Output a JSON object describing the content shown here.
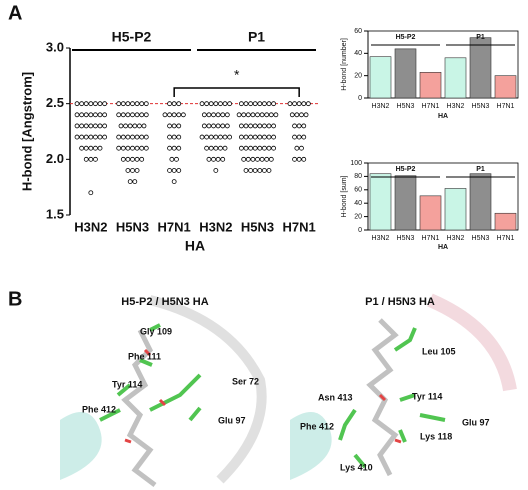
{
  "panels": [
    "A",
    "B"
  ],
  "chart_data": [
    {
      "type": "strip",
      "ylabel": "H-bond [Angstrom]",
      "xlabel": "HA",
      "categories": [
        "H3N2",
        "H5N3",
        "H7N1",
        "H3N2",
        "H5N3",
        "H7N1"
      ],
      "groups": [
        "H5-P2",
        "P1"
      ],
      "annotation": "*",
      "reference_line": {
        "value": 2.5,
        "color": "#e03030"
      },
      "ylim": [
        1.5,
        3.0
      ],
      "yticks": [
        {
          "value": 1.5,
          "label": "1.5"
        },
        {
          "value": 2,
          "label": "2.0"
        },
        {
          "value": 2.5,
          "label": "2.5"
        },
        {
          "value": 3,
          "label": "3.0"
        }
      ],
      "values": [
        [
          2.5,
          2.5,
          2.5,
          2.5,
          2.5,
          2.5,
          2.5,
          2.4,
          2.4,
          2.4,
          2.4,
          2.4,
          2.4,
          2.4,
          2.3,
          2.3,
          2.3,
          2.3,
          2.3,
          2.3,
          2.3,
          2.2,
          2.2,
          2.2,
          2.2,
          2.2,
          2.2,
          2.2,
          2.1,
          2.1,
          2.1,
          2.1,
          2.1,
          2.0,
          2.0,
          2.0,
          1.7
        ],
        [
          2.5,
          2.5,
          2.5,
          2.5,
          2.5,
          2.5,
          2.5,
          2.4,
          2.4,
          2.4,
          2.4,
          2.4,
          2.4,
          2.4,
          2.3,
          2.3,
          2.3,
          2.3,
          2.3,
          2.3,
          2.2,
          2.2,
          2.2,
          2.2,
          2.2,
          2.2,
          2.2,
          2.1,
          2.1,
          2.1,
          2.1,
          2.1,
          2.1,
          2.1,
          2.0,
          2.0,
          2.0,
          2.0,
          2.0,
          1.9,
          1.9,
          1.9,
          1.8,
          1.8
        ],
        [
          2.5,
          2.5,
          2.5,
          2.4,
          2.4,
          2.4,
          2.4,
          2.4,
          2.3,
          2.3,
          2.3,
          2.2,
          2.2,
          2.2,
          2.1,
          2.1,
          2.1,
          2.0,
          2.0,
          1.9,
          1.9,
          1.9,
          1.8
        ],
        [
          2.5,
          2.5,
          2.5,
          2.5,
          2.5,
          2.5,
          2.5,
          2.4,
          2.4,
          2.4,
          2.4,
          2.4,
          2.4,
          2.3,
          2.3,
          2.3,
          2.3,
          2.3,
          2.3,
          2.2,
          2.2,
          2.2,
          2.2,
          2.2,
          2.2,
          2.2,
          2.1,
          2.1,
          2.1,
          2.1,
          2.1,
          2.0,
          2.0,
          2.0,
          2.0,
          1.9
        ],
        [
          2.5,
          2.5,
          2.5,
          2.5,
          2.5,
          2.5,
          2.5,
          2.5,
          2.4,
          2.4,
          2.4,
          2.4,
          2.4,
          2.4,
          2.4,
          2.4,
          2.4,
          2.3,
          2.3,
          2.3,
          2.3,
          2.3,
          2.3,
          2.3,
          2.3,
          2.2,
          2.2,
          2.2,
          2.2,
          2.2,
          2.2,
          2.2,
          2.2,
          2.1,
          2.1,
          2.1,
          2.1,
          2.1,
          2.1,
          2.1,
          2.1,
          2.0,
          2.0,
          2.0,
          2.0,
          2.0,
          2.0,
          2.0,
          1.9,
          1.9,
          1.9,
          1.9,
          1.9,
          1.9
        ],
        [
          2.5,
          2.5,
          2.5,
          2.5,
          2.5,
          2.4,
          2.4,
          2.4,
          2.4,
          2.3,
          2.3,
          2.3,
          2.2,
          2.2,
          2.2,
          2.1,
          2.1,
          2.0,
          2.0,
          2.0
        ]
      ]
    },
    {
      "type": "bar",
      "ylabel": "H-bond [number]",
      "xlabel": "HA",
      "categories": [
        "H3N2",
        "H5N3",
        "H7N1",
        "H3N2",
        "H5N3",
        "H7N1"
      ],
      "groups": [
        "H5-P2",
        "P1"
      ],
      "values": [
        37,
        44,
        23,
        36,
        54,
        20
      ],
      "colors": [
        "#c9f5e6",
        "#8e8e8e",
        "#f4a19c",
        "#c9f5e6",
        "#8e8e8e",
        "#f4a19c"
      ],
      "ylim": [
        0,
        60
      ],
      "yticks": [
        0,
        20,
        40,
        60
      ]
    },
    {
      "type": "bar",
      "ylabel": "H-bond [sum]",
      "xlabel": "HA",
      "categories": [
        "H3N2",
        "H5N3",
        "H7N1",
        "H3N2",
        "H5N3",
        "H7N1"
      ],
      "groups": [
        "H5-P2",
        "P1"
      ],
      "values": [
        84,
        81,
        51,
        62,
        84,
        25
      ],
      "colors": [
        "#c9f5e6",
        "#8e8e8e",
        "#f4a19c",
        "#c9f5e6",
        "#8e8e8e",
        "#f4a19c"
      ],
      "ylim": [
        0,
        100
      ],
      "yticks": [
        0,
        20,
        40,
        60,
        80,
        100
      ]
    }
  ],
  "structures": [
    {
      "title": "H5-P2 / H5N3 HA",
      "residues": [
        "Gly 109",
        "Phe 111",
        "Tyr 114",
        "Ser 72",
        "Phe 412",
        "Glu 97"
      ]
    },
    {
      "title": "P1 / H5N3 HA",
      "residues": [
        "Leu 105",
        "Asn 413",
        "Tyr 114",
        "Phe 412",
        "Glu 97",
        "Lys 118",
        "Lys 410"
      ]
    }
  ]
}
